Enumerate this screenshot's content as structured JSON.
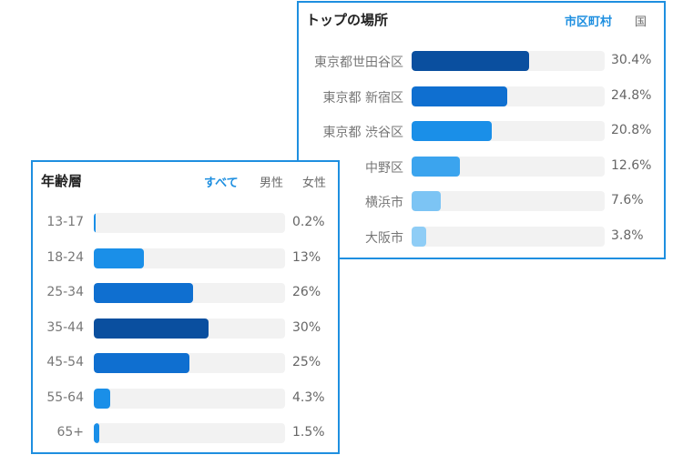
{
  "places": {
    "title": "トップの場所",
    "tabs": [
      {
        "label": "市区町村",
        "active": true
      },
      {
        "label": "国",
        "active": false
      }
    ],
    "rows": [
      {
        "label": "東京都世田谷区",
        "value": "30.4%",
        "percent": 30.4,
        "color": "#0a4f9f"
      },
      {
        "label": "東京都 新宿区",
        "value": "24.8%",
        "percent": 24.8,
        "color": "#0f6fd0"
      },
      {
        "label": "東京都 渋谷区",
        "value": "20.8%",
        "percent": 20.8,
        "color": "#1a8fe8"
      },
      {
        "label": "中野区",
        "value": "12.6%",
        "percent": 12.6,
        "color": "#3ba4ee"
      },
      {
        "label": "横浜市",
        "value": "7.6%",
        "percent": 7.6,
        "color": "#7cc4f4"
      },
      {
        "label": "大阪市",
        "value": "3.8%",
        "percent": 3.8,
        "color": "#8fcdf6"
      }
    ]
  },
  "age": {
    "title": "年齢層",
    "tabs": [
      {
        "label": "すべて",
        "active": true
      },
      {
        "label": "男性",
        "active": false
      },
      {
        "label": "女性",
        "active": false
      }
    ],
    "rows": [
      {
        "label": "13-17",
        "value": "0.2%",
        "percent": 0.2,
        "color": "#1a8fe8"
      },
      {
        "label": "18-24",
        "value": "13%",
        "percent": 13,
        "color": "#1a8fe8"
      },
      {
        "label": "25-34",
        "value": "26%",
        "percent": 26,
        "color": "#0f6fd0"
      },
      {
        "label": "35-44",
        "value": "30%",
        "percent": 30,
        "color": "#0a4f9f"
      },
      {
        "label": "45-54",
        "value": "25%",
        "percent": 25,
        "color": "#0f6fd0"
      },
      {
        "label": "55-64",
        "value": "4.3%",
        "percent": 4.3,
        "color": "#1a8fe8"
      },
      {
        "label": "65+",
        "value": "1.5%",
        "percent": 1.5,
        "color": "#1a8fe8"
      }
    ]
  }
}
